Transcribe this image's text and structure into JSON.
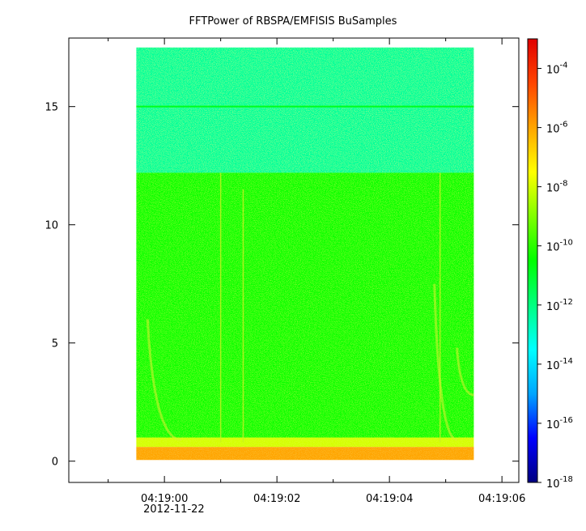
{
  "chart_data": {
    "type": "heatmap",
    "title": "FFTPower of RBSPA/EMFISIS  BuSamples",
    "xlabel": "",
    "ylabel": "",
    "x_axis": {
      "type": "time",
      "range": [
        "04:18:58.3",
        "04:19:06.3"
      ],
      "major_ticks": [
        "04:19:00",
        "04:19:02",
        "04:19:04",
        "04:19:06"
      ],
      "minor_ticks": [
        "04:18:59",
        "04:19:01",
        "04:19:03",
        "04:19:05"
      ],
      "date_label": "2012-11-22"
    },
    "y_axis": {
      "range": [
        -0.9,
        17.9
      ],
      "ticks": [
        0,
        5,
        10,
        15
      ],
      "tick_labels": [
        "0",
        "5",
        "10",
        "15"
      ]
    },
    "data_extent": {
      "x": [
        "04:18:59.5",
        "04:19:05.5"
      ],
      "y": [
        0,
        17.5
      ]
    },
    "colorbar": {
      "scale": "log",
      "range": [
        1e-18,
        0.001
      ],
      "ticks": [
        1e-18,
        1e-16,
        1e-14,
        1e-12,
        1e-10,
        1e-08,
        1e-06,
        0.0001
      ],
      "tick_labels": [
        {
          "base": "10",
          "exp": "-18"
        },
        {
          "base": "10",
          "exp": "-16"
        },
        {
          "base": "10",
          "exp": "-14"
        },
        {
          "base": "10",
          "exp": "-12"
        },
        {
          "base": "10",
          "exp": "-10"
        },
        {
          "base": "10",
          "exp": "-8"
        },
        {
          "base": "10",
          "exp": "-6"
        },
        {
          "base": "10",
          "exp": "-4"
        }
      ],
      "colormap": [
        "#00007f",
        "#0000ff",
        "#00a5ff",
        "#00ffff",
        "#00ff80",
        "#00ff00",
        "#80ff00",
        "#ffff00",
        "#ffa500",
        "#ff4500",
        "#e00000"
      ]
    },
    "bands": [
      {
        "y_from": 12.2,
        "y_to": 17.5,
        "log10_power": -12.3,
        "description_color": "#18f075"
      },
      {
        "y_from": 1.0,
        "y_to": 12.2,
        "log10_power": -10.3,
        "description_color": "#30e030"
      },
      {
        "y_from": 0.6,
        "y_to": 1.0,
        "log10_power": -8.0,
        "description_color": "#ffd000"
      },
      {
        "y_from": 0.05,
        "y_to": 0.6,
        "log10_power": -6.0,
        "description_color": "#f04800"
      }
    ],
    "features": [
      {
        "type": "horizontal_line",
        "y": 15.0,
        "log10_power": -10.8
      },
      {
        "type": "vertical_line",
        "x": "04:19:01.0",
        "y_from": 0.8,
        "y_to": 12.2
      },
      {
        "type": "vertical_line",
        "x": "04:19:01.4",
        "y_from": 0.8,
        "y_to": 11.5
      },
      {
        "type": "vertical_line",
        "x": "04:19:04.9",
        "y_from": 0.8,
        "y_to": 12.2
      },
      {
        "type": "chorus_arc",
        "x_from": "04:18:59.7",
        "x_to": "04:19:00.3",
        "y_from": 6.0,
        "y_to": 0.9
      },
      {
        "type": "chorus_arc",
        "x_from": "04:19:04.8",
        "x_to": "04:19:05.2",
        "y_from": 7.5,
        "y_to": 0.9
      },
      {
        "type": "chorus_arc",
        "x_from": "04:19:05.2",
        "x_to": "04:19:05.5",
        "y_from": 4.8,
        "y_to": 2.8
      }
    ]
  }
}
